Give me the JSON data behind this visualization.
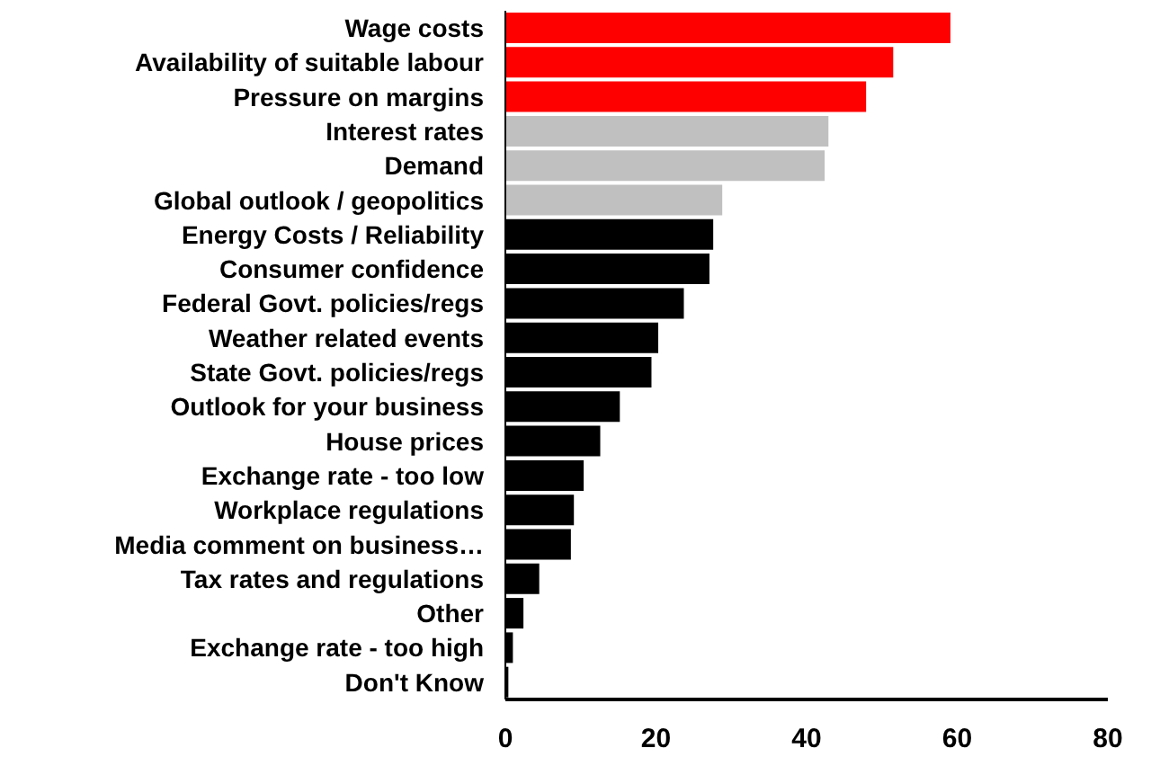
{
  "chart_data": {
    "type": "bar",
    "orientation": "horizontal",
    "categories": [
      "Wage costs",
      "Availability of suitable labour",
      "Pressure on margins",
      "Interest rates",
      "Demand",
      "Global outlook / geopolitics",
      "Energy Costs / Reliability",
      "Consumer confidence",
      "Federal Govt. policies/regs",
      "Weather related events",
      "State Govt. policies/regs",
      "Outlook for your business",
      "House prices",
      "Exchange rate - too low",
      "Workplace regulations",
      "Media comment on business…",
      "Tax rates and regulations",
      "Other",
      "Exchange rate - too high",
      "Don't Know"
    ],
    "values": [
      59.1,
      51.5,
      47.9,
      42.9,
      42.4,
      28.8,
      27.6,
      27.1,
      23.7,
      20.3,
      19.4,
      15.2,
      12.6,
      10.4,
      9.1,
      8.7,
      4.5,
      2.4,
      1.0,
      0.4
    ],
    "colors": [
      "#ff0000",
      "#ff0000",
      "#ff0000",
      "#c0c0c0",
      "#c0c0c0",
      "#c0c0c0",
      "#000000",
      "#000000",
      "#000000",
      "#000000",
      "#000000",
      "#000000",
      "#000000",
      "#000000",
      "#000000",
      "#000000",
      "#000000",
      "#000000",
      "#000000",
      "#000000"
    ],
    "xlim": [
      0,
      80
    ],
    "xticks": [
      0,
      20,
      40,
      60,
      80
    ],
    "grid": false,
    "legend": false
  }
}
